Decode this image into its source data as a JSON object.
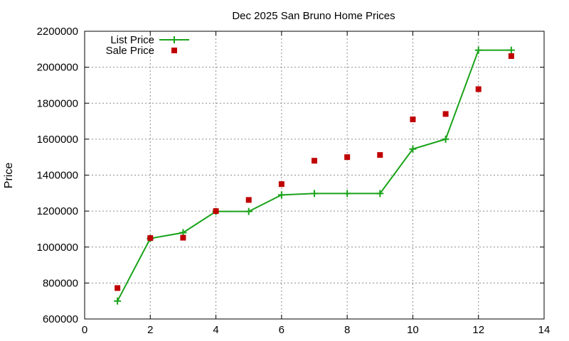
{
  "chart_data": {
    "type": "line",
    "title": "Dec 2025 San Bruno Home Prices",
    "xlabel": "",
    "ylabel": "Price",
    "xlim": [
      0,
      14
    ],
    "ylim": [
      600000,
      2200000
    ],
    "x_ticks": [
      0,
      2,
      4,
      6,
      8,
      10,
      12,
      14
    ],
    "y_ticks": [
      600000,
      800000,
      1000000,
      1200000,
      1400000,
      1600000,
      1800000,
      2000000,
      2200000
    ],
    "grid": true,
    "legend_position": "top-left",
    "series": [
      {
        "name": "List Price",
        "style": "line-with-plus-markers",
        "color": "#1aa31a",
        "x": [
          1,
          2,
          3,
          4,
          5,
          6,
          7,
          8,
          9,
          10,
          11,
          12,
          13
        ],
        "values": [
          700000,
          1048000,
          1080000,
          1198000,
          1198000,
          1290000,
          1298000,
          1298000,
          1298000,
          1545000,
          1600000,
          2095000,
          2095000
        ]
      },
      {
        "name": "Sale Price",
        "style": "square-points",
        "color": "#c00000",
        "x": [
          1,
          2,
          3,
          4,
          5,
          6,
          7,
          8,
          9,
          10,
          11,
          12,
          13
        ],
        "values": [
          772000,
          1050000,
          1052000,
          1200000,
          1262000,
          1350000,
          1480000,
          1500000,
          1512000,
          1710000,
          1740000,
          1878000,
          2062000
        ]
      }
    ]
  }
}
